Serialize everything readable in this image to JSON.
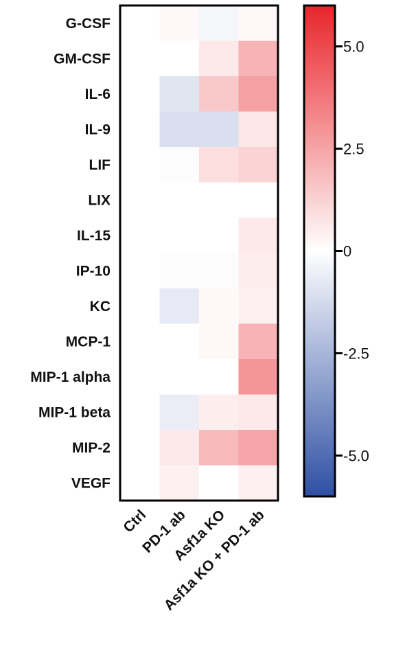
{
  "chart_data": {
    "type": "heatmap",
    "rows": [
      "G-CSF",
      "GM-CSF",
      "IL-6",
      "IL-9",
      "LIF",
      "LIX",
      "IL-15",
      "IP-10",
      "KC",
      "MCP-1",
      "MIP-1 alpha",
      "MIP-1 beta",
      "MIP-2",
      "VEGF"
    ],
    "columns": [
      "Ctrl",
      "PD-1 ab",
      "Asf1a KO",
      "Asf1a KO + PD-1 ab"
    ],
    "values": [
      [
        0,
        0.2,
        -0.3,
        0.2
      ],
      [
        0,
        0,
        0.6,
        2.1
      ],
      [
        0,
        -0.9,
        1.5,
        2.6
      ],
      [
        0,
        -1.1,
        -1.1,
        0.7
      ],
      [
        0,
        -0.1,
        0.9,
        1.2
      ],
      [
        0,
        0,
        0,
        0
      ],
      [
        0,
        0,
        0,
        0.6
      ],
      [
        0,
        -0.1,
        -0.1,
        0.5
      ],
      [
        0,
        -0.7,
        0.2,
        0.4
      ],
      [
        0,
        0,
        0.2,
        2.1
      ],
      [
        0,
        0,
        0,
        2.9
      ],
      [
        0,
        -0.6,
        0.5,
        0.6
      ],
      [
        0,
        0.6,
        1.9,
        2.5
      ],
      [
        0,
        0.4,
        0,
        0.4
      ]
    ],
    "colorbar": {
      "min": -6,
      "max": 6,
      "ticks": [
        5.0,
        2.5,
        0,
        -2.5,
        -5.0
      ],
      "tick_labels": [
        "5.0",
        "2.5",
        "0",
        "-2.5",
        "-5.0"
      ],
      "colors": {
        "negative": "#2e4fa3",
        "zero": "#ffffff",
        "positive": "#e8252b"
      }
    }
  }
}
